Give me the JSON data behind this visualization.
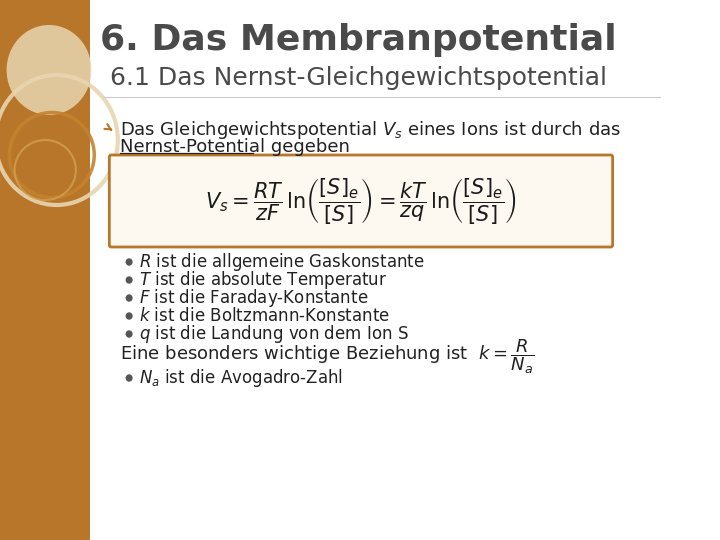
{
  "title": "6. Das Membranpotential",
  "subtitle": "6.1 Das Nernst-Gleichgewichtspotential",
  "title_color": "#4a4a4a",
  "subtitle_color": "#4a4a4a",
  "bg_color": "#ffffff",
  "sidebar_color": "#b8762a",
  "title_fontsize": 26,
  "subtitle_fontsize": 18,
  "body_fontsize": 13,
  "bullet_fontsize": 12,
  "formula_box_color": "#b8762a",
  "formula_box_facecolor": "#fdf8f0",
  "bullet_items": [
    "$R$ ist die allgemeine Gaskonstante",
    "$T$ ist die absolute Temperatur",
    "$F$ ist die Faraday-Konstante",
    "$k$ ist die Boltzmann-Konstante",
    "$q$ ist die Landung von dem Ion S"
  ]
}
